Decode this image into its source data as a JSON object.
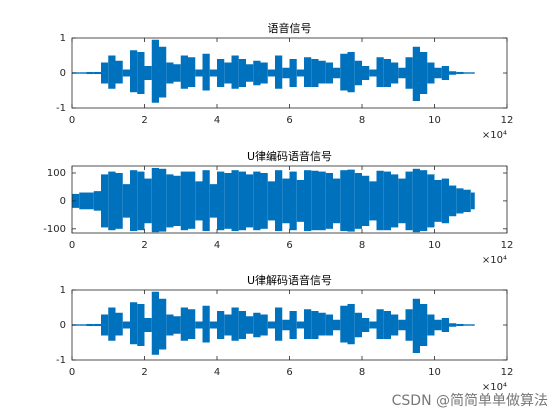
{
  "chart_data": [
    {
      "type": "envelope",
      "title": "语音信号",
      "color": "#0072bd",
      "x_exponent": "×10⁴",
      "x": [
        0,
        0.2,
        0.4,
        0.6,
        0.8,
        1.0,
        1.2,
        1.4,
        1.6,
        1.8,
        2.0,
        2.2,
        2.4,
        2.6,
        2.8,
        3.0,
        3.2,
        3.4,
        3.6,
        3.8,
        4.0,
        4.2,
        4.4,
        4.6,
        4.8,
        5.0,
        5.2,
        5.4,
        5.6,
        5.8,
        6.0,
        6.2,
        6.4,
        6.6,
        6.8,
        7.0,
        7.2,
        7.4,
        7.6,
        7.8,
        8.0,
        8.2,
        8.4,
        8.6,
        8.8,
        9.0,
        9.2,
        9.4,
        9.6,
        9.8,
        10.0,
        10.2,
        10.4,
        10.6,
        10.8,
        11.0
      ],
      "y_max": [
        0.02,
        0.02,
        0.03,
        0.03,
        0.3,
        0.5,
        0.35,
        0.1,
        0.65,
        0.6,
        0.2,
        0.95,
        0.75,
        0.3,
        0.25,
        0.5,
        0.45,
        0.1,
        0.55,
        0.1,
        0.4,
        0.3,
        0.5,
        0.4,
        0.25,
        0.35,
        0.3,
        0.1,
        0.5,
        0.15,
        0.4,
        0.1,
        0.45,
        0.4,
        0.35,
        0.3,
        0.15,
        0.55,
        0.6,
        0.35,
        0.2,
        0.1,
        0.45,
        0.4,
        0.3,
        0.15,
        0.45,
        0.75,
        0.6,
        0.3,
        0.15,
        0.2,
        0.05,
        0.03,
        0.02,
        0.02
      ],
      "y_min": [
        -0.02,
        -0.02,
        -0.03,
        -0.03,
        -0.3,
        -0.45,
        -0.3,
        -0.1,
        -0.55,
        -0.6,
        -0.2,
        -0.85,
        -0.7,
        -0.3,
        -0.25,
        -0.45,
        -0.4,
        -0.1,
        -0.5,
        -0.1,
        -0.4,
        -0.3,
        -0.45,
        -0.4,
        -0.25,
        -0.35,
        -0.3,
        -0.1,
        -0.45,
        -0.15,
        -0.4,
        -0.1,
        -0.4,
        -0.4,
        -0.3,
        -0.3,
        -0.15,
        -0.5,
        -0.55,
        -0.35,
        -0.2,
        -0.1,
        -0.4,
        -0.4,
        -0.3,
        -0.15,
        -0.45,
        -0.8,
        -0.6,
        -0.3,
        -0.15,
        -0.2,
        -0.05,
        -0.03,
        -0.02,
        -0.02
      ],
      "xlim": [
        0,
        12
      ],
      "xticks": [
        0,
        2,
        4,
        6,
        8,
        10,
        12
      ],
      "ylim": [
        -1,
        1
      ],
      "yticks": [
        -1,
        0,
        1
      ]
    },
    {
      "type": "envelope",
      "title": "U律编码语音信号",
      "color": "#0072bd",
      "x_exponent": "×10⁴",
      "x": [
        0,
        0.2,
        0.4,
        0.6,
        0.8,
        1.0,
        1.2,
        1.4,
        1.6,
        1.8,
        2.0,
        2.2,
        2.4,
        2.6,
        2.8,
        3.0,
        3.2,
        3.4,
        3.6,
        3.8,
        4.0,
        4.2,
        4.4,
        4.6,
        4.8,
        5.0,
        5.2,
        5.4,
        5.6,
        5.8,
        6.0,
        6.2,
        6.4,
        6.6,
        6.8,
        7.0,
        7.2,
        7.4,
        7.6,
        7.8,
        8.0,
        8.2,
        8.4,
        8.6,
        8.8,
        9.0,
        9.2,
        9.4,
        9.6,
        9.8,
        10.0,
        10.2,
        10.4,
        10.6,
        10.8,
        11.0
      ],
      "y_max": [
        25,
        30,
        30,
        35,
        95,
        105,
        100,
        60,
        110,
        105,
        80,
        118,
        115,
        95,
        90,
        105,
        105,
        70,
        110,
        60,
        105,
        100,
        110,
        105,
        95,
        105,
        100,
        70,
        110,
        80,
        105,
        75,
        110,
        108,
        105,
        100,
        80,
        110,
        112,
        100,
        90,
        70,
        108,
        105,
        95,
        80,
        105,
        115,
        110,
        95,
        75,
        80,
        55,
        45,
        40,
        30
      ],
      "y_min": [
        -25,
        -30,
        -30,
        -35,
        -95,
        -105,
        -100,
        -60,
        -108,
        -105,
        -80,
        -112,
        -110,
        -95,
        -90,
        -105,
        -100,
        -70,
        -108,
        -60,
        -105,
        -100,
        -108,
        -105,
        -95,
        -105,
        -100,
        -70,
        -108,
        -80,
        -105,
        -75,
        -108,
        -105,
        -105,
        -100,
        -80,
        -108,
        -110,
        -100,
        -90,
        -70,
        -105,
        -105,
        -95,
        -80,
        -105,
        -112,
        -108,
        -95,
        -75,
        -80,
        -55,
        -45,
        -40,
        -30
      ],
      "xlim": [
        0,
        12
      ],
      "xticks": [
        0,
        2,
        4,
        6,
        8,
        10,
        12
      ],
      "ylim": [
        -115,
        125
      ],
      "yticks": [
        -100,
        0,
        100
      ]
    },
    {
      "type": "envelope",
      "title": "U律解码语音信号",
      "color": "#0072bd",
      "x_exponent": "×10⁴",
      "x": [
        0,
        0.2,
        0.4,
        0.6,
        0.8,
        1.0,
        1.2,
        1.4,
        1.6,
        1.8,
        2.0,
        2.2,
        2.4,
        2.6,
        2.8,
        3.0,
        3.2,
        3.4,
        3.6,
        3.8,
        4.0,
        4.2,
        4.4,
        4.6,
        4.8,
        5.0,
        5.2,
        5.4,
        5.6,
        5.8,
        6.0,
        6.2,
        6.4,
        6.6,
        6.8,
        7.0,
        7.2,
        7.4,
        7.6,
        7.8,
        8.0,
        8.2,
        8.4,
        8.6,
        8.8,
        9.0,
        9.2,
        9.4,
        9.6,
        9.8,
        10.0,
        10.2,
        10.4,
        10.6,
        10.8,
        11.0
      ],
      "y_max": [
        0.02,
        0.02,
        0.03,
        0.03,
        0.3,
        0.5,
        0.35,
        0.1,
        0.65,
        0.6,
        0.2,
        0.95,
        0.75,
        0.3,
        0.25,
        0.5,
        0.45,
        0.1,
        0.55,
        0.1,
        0.4,
        0.3,
        0.5,
        0.4,
        0.25,
        0.35,
        0.3,
        0.1,
        0.5,
        0.15,
        0.4,
        0.1,
        0.45,
        0.4,
        0.35,
        0.3,
        0.15,
        0.55,
        0.6,
        0.35,
        0.2,
        0.1,
        0.45,
        0.4,
        0.3,
        0.15,
        0.45,
        0.75,
        0.6,
        0.3,
        0.15,
        0.2,
        0.05,
        0.03,
        0.02,
        0.02
      ],
      "y_min": [
        -0.02,
        -0.02,
        -0.03,
        -0.03,
        -0.3,
        -0.45,
        -0.3,
        -0.1,
        -0.55,
        -0.6,
        -0.2,
        -0.85,
        -0.7,
        -0.3,
        -0.25,
        -0.45,
        -0.4,
        -0.1,
        -0.5,
        -0.1,
        -0.4,
        -0.3,
        -0.45,
        -0.4,
        -0.25,
        -0.35,
        -0.3,
        -0.1,
        -0.45,
        -0.15,
        -0.4,
        -0.1,
        -0.4,
        -0.4,
        -0.3,
        -0.3,
        -0.15,
        -0.5,
        -0.55,
        -0.35,
        -0.2,
        -0.1,
        -0.4,
        -0.4,
        -0.3,
        -0.15,
        -0.45,
        -0.8,
        -0.6,
        -0.3,
        -0.15,
        -0.2,
        -0.05,
        -0.03,
        -0.02,
        -0.02
      ],
      "xlim": [
        0,
        12
      ],
      "xticks": [
        0,
        2,
        4,
        6,
        8,
        10,
        12
      ],
      "ylim": [
        -1,
        1
      ],
      "yticks": [
        -1,
        0,
        1
      ]
    }
  ],
  "watermark": "CSDN @简简单单做算法"
}
